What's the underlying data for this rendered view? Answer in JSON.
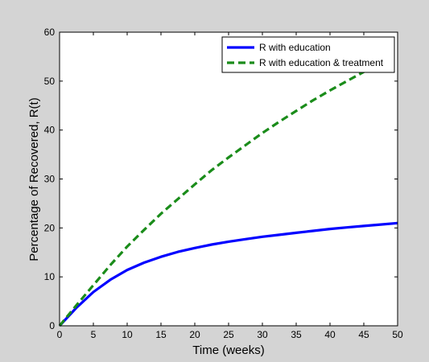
{
  "colors": {
    "figure_background": "#d4d4d4",
    "plot_background": "#ffffff",
    "axes": "#000000",
    "series_education": "#0000ff",
    "series_education_treatment": "#1a8c1a"
  },
  "chart_data": {
    "type": "line",
    "title": "",
    "xlabel": "Time (weeks)",
    "ylabel": "Percentage of Recovered, R(t)",
    "xlim": [
      0,
      50
    ],
    "ylim": [
      0,
      60
    ],
    "xticks": [
      0,
      5,
      10,
      15,
      20,
      25,
      30,
      35,
      40,
      45,
      50
    ],
    "yticks": [
      0,
      10,
      20,
      30,
      40,
      50,
      60
    ],
    "grid": false,
    "legend_position": "top-right",
    "series": [
      {
        "name": "R with education",
        "line_style": "solid",
        "color_key": "series_education",
        "x": [
          0,
          2.5,
          5,
          7.5,
          10,
          12.5,
          15,
          17.5,
          20,
          22.5,
          25,
          27.5,
          30,
          32.5,
          35,
          37.5,
          40,
          42.5,
          45,
          47.5,
          50
        ],
        "y": [
          0,
          3.7,
          6.9,
          9.4,
          11.4,
          12.9,
          14.1,
          15.1,
          15.9,
          16.6,
          17.2,
          17.7,
          18.2,
          18.6,
          19.0,
          19.4,
          19.8,
          20.1,
          20.4,
          20.7,
          21.0
        ]
      },
      {
        "name": "R with education & treatment",
        "line_style": "dashed",
        "color_key": "series_education_treatment",
        "x": [
          0,
          2.5,
          5,
          7.5,
          10,
          12.5,
          15,
          17.5,
          20,
          22.5,
          25,
          27.5,
          30,
          32.5,
          35,
          37.5,
          40,
          42.5,
          45,
          46.3
        ],
        "y": [
          0,
          4.2,
          8.3,
          12.4,
          16.2,
          19.6,
          22.9,
          25.9,
          28.9,
          31.8,
          34.4,
          36.9,
          39.4,
          41.7,
          43.9,
          46.1,
          48.1,
          50.0,
          51.9,
          53.0
        ]
      }
    ]
  }
}
